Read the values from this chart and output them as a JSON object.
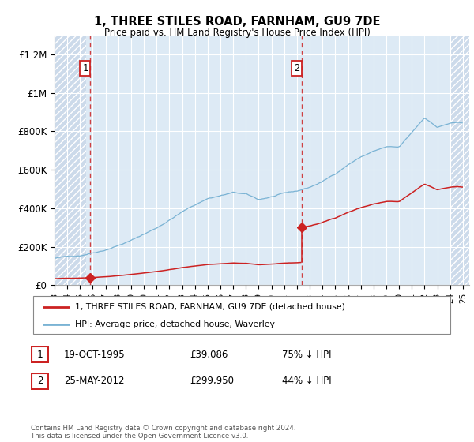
{
  "title": "1, THREE STILES ROAD, FARNHAM, GU9 7DE",
  "subtitle": "Price paid vs. HM Land Registry's House Price Index (HPI)",
  "yticks": [
    0,
    200000,
    400000,
    600000,
    800000,
    1000000,
    1200000
  ],
  "ytick_labels": [
    "£0",
    "£200K",
    "£400K",
    "£600K",
    "£800K",
    "£1M",
    "£1.2M"
  ],
  "hpi_color": "#7ab3d4",
  "price_color": "#cc2222",
  "sale1_x": 1995.8,
  "sale1_y": 39086,
  "sale2_x": 2012.37,
  "sale2_y": 299950,
  "legend_line1": "1, THREE STILES ROAD, FARNHAM, GU9 7DE (detached house)",
  "legend_line2": "HPI: Average price, detached house, Waverley",
  "footer": "Contains HM Land Registry data © Crown copyright and database right 2024.\nThis data is licensed under the Open Government Licence v3.0.",
  "table_rows": [
    [
      "1",
      "19-OCT-1995",
      "£39,086",
      "75% ↓ HPI"
    ],
    [
      "2",
      "25-MAY-2012",
      "£299,950",
      "44% ↓ HPI"
    ]
  ],
  "background_plot": "#ddeaf5",
  "hatch_bg": "#ccdaea",
  "xlim_left": 1993.0,
  "xlim_right": 2025.5,
  "ylim_top": 1300000,
  "hatch_left_end": 1995.5,
  "hatch_right_start": 2024.0
}
